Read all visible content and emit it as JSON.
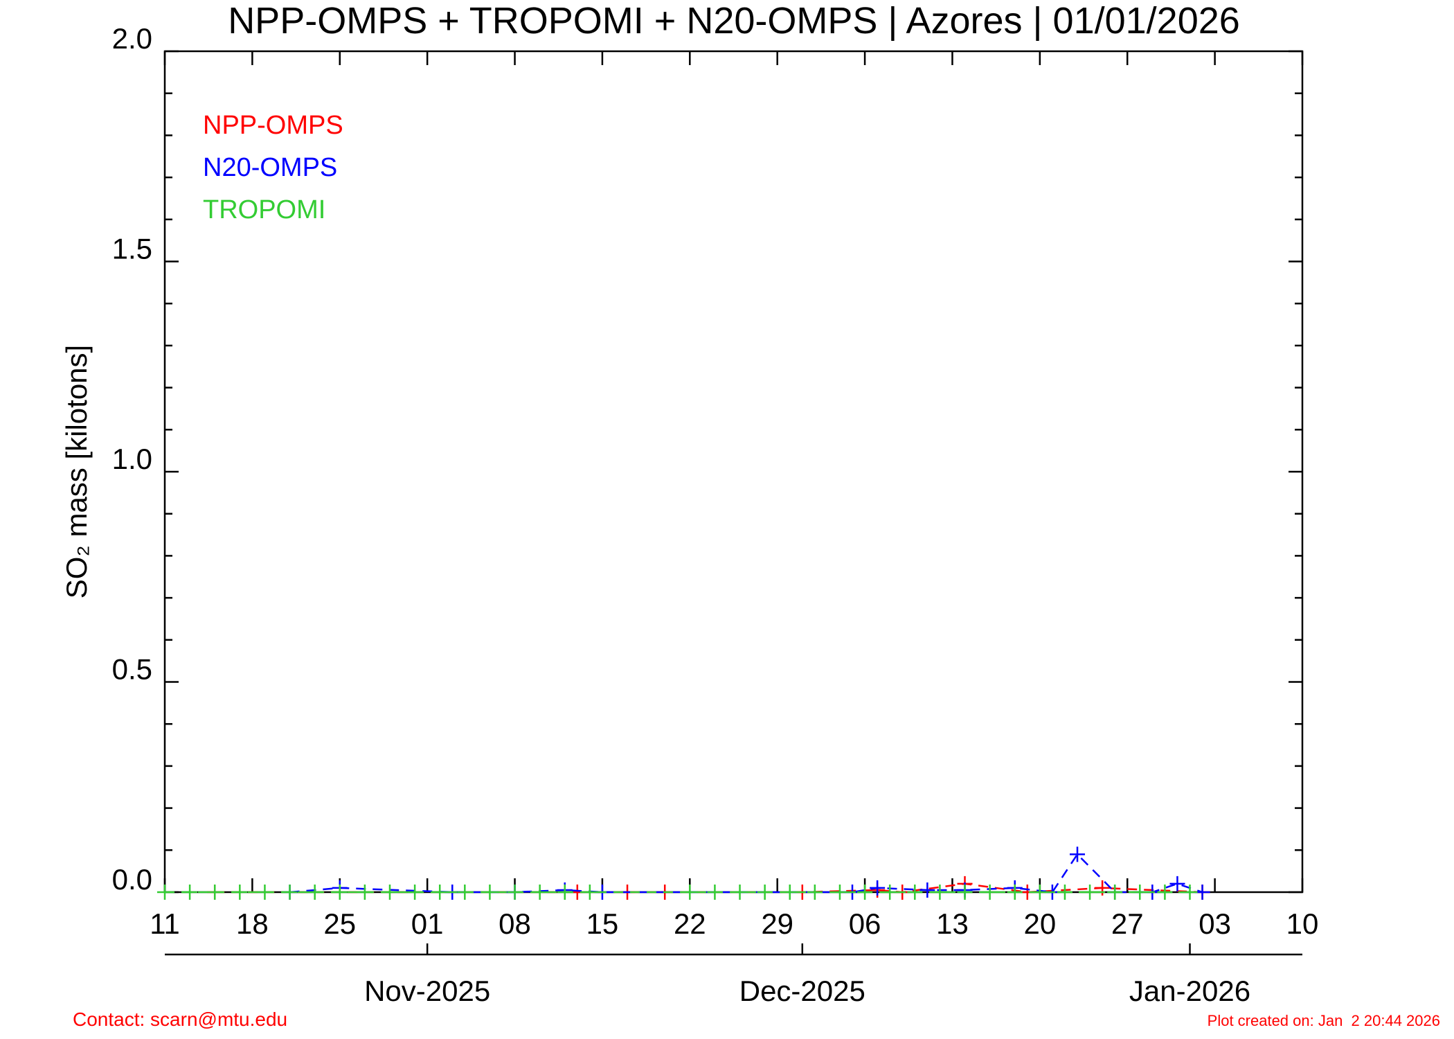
{
  "chart_data": {
    "type": "line",
    "title": "NPP-OMPS + TROPOMI + N20-OMPS | Azores | 01/01/2026",
    "y_label": "SO₂ mass [kilotons]",
    "xlim": [
      "2025-10-11",
      "2026-01-10"
    ],
    "xticks": [
      {
        "value": "2025-10-11",
        "label": "11"
      },
      {
        "value": "2025-10-18",
        "label": "18"
      },
      {
        "value": "2025-10-25",
        "label": "25"
      },
      {
        "value": "2025-11-01",
        "label": "01"
      },
      {
        "value": "2025-11-08",
        "label": "08"
      },
      {
        "value": "2025-11-15",
        "label": "15"
      },
      {
        "value": "2025-11-22",
        "label": "22"
      },
      {
        "value": "2025-11-29",
        "label": "29"
      },
      {
        "value": "2025-12-06",
        "label": "06"
      },
      {
        "value": "2025-12-13",
        "label": "13"
      },
      {
        "value": "2025-12-20",
        "label": "20"
      },
      {
        "value": "2025-12-27",
        "label": "27"
      },
      {
        "value": "2026-01-03",
        "label": "03"
      },
      {
        "value": "2026-01-10",
        "label": "10"
      }
    ],
    "month_ticks": [
      {
        "value": "2025-11-01",
        "label": "Nov-2025"
      },
      {
        "value": "2025-12-01",
        "label": "Dec-2025"
      },
      {
        "value": "2026-01-01",
        "label": "Jan-2026"
      }
    ],
    "ylim": [
      0,
      2.0
    ],
    "yticks": [
      {
        "value": 0,
        "label": "0.0"
      },
      0.5,
      {
        "value": 1,
        "label": "1.0"
      },
      1.5,
      {
        "value": 2,
        "label": "2.0"
      }
    ],
    "yminorticks": [
      0.1,
      0.2,
      0.3,
      0.4,
      0.6,
      0.7,
      0.8,
      0.9,
      1.1,
      1.2,
      1.3,
      1.4,
      1.6,
      1.7,
      1.8,
      1.9
    ],
    "series": [
      {
        "name": "NPP-OMPS",
        "color": "#ff0000",
        "x": [
          "2025-10-15",
          "2025-11-13",
          "2025-11-17",
          "2025-11-20",
          "2025-12-01",
          "2025-12-07",
          "2025-12-09",
          "2025-12-14",
          "2025-12-19",
          "2025-12-25",
          "2026-01-02"
        ],
        "values": [
          0,
          0,
          0,
          0,
          0,
          0.005,
          0,
          0.02,
          0,
          0.01,
          0
        ]
      },
      {
        "name": "N20-OMPS",
        "color": "#0000ff",
        "x": [
          "2025-10-21",
          "2025-10-25",
          "2025-11-03",
          "2025-11-08",
          "2025-11-12",
          "2025-11-15",
          "2025-12-05",
          "2025-12-07",
          "2025-12-11",
          "2025-12-14",
          "2025-12-18",
          "2025-12-21",
          "2025-12-23",
          "2025-12-26",
          "2025-12-29",
          "2025-12-31",
          "2026-01-02"
        ],
        "values": [
          0,
          0.01,
          0,
          0,
          0.005,
          0,
          0,
          0.01,
          0.005,
          0.005,
          0.01,
          0,
          0.09,
          0,
          0,
          0.02,
          0
        ]
      },
      {
        "name": "TROPOMI",
        "color": "#33cc33",
        "x": [
          "2025-10-11",
          "2025-10-13",
          "2025-10-15",
          "2025-10-17",
          "2025-10-19",
          "2025-10-21",
          "2025-10-23",
          "2025-10-25",
          "2025-10-27",
          "2025-10-29",
          "2025-10-31",
          "2025-11-02",
          "2025-11-04",
          "2025-11-06",
          "2025-11-08",
          "2025-11-10",
          "2025-11-12",
          "2025-11-14",
          "2025-11-22",
          "2025-11-24",
          "2025-11-26",
          "2025-11-28",
          "2025-11-30",
          "2025-12-02",
          "2025-12-04",
          "2025-12-06",
          "2025-12-08",
          "2025-12-10",
          "2025-12-12",
          "2025-12-14",
          "2025-12-16",
          "2025-12-18",
          "2025-12-20",
          "2025-12-22",
          "2025-12-24",
          "2025-12-26",
          "2025-12-28",
          "2025-12-30",
          "2026-01-01"
        ],
        "values": [
          0,
          0,
          0,
          0,
          0,
          0,
          0,
          0,
          0,
          0,
          0,
          0,
          0,
          0,
          0,
          0,
          0,
          0,
          0,
          0,
          0,
          0,
          0,
          0,
          0,
          0,
          0,
          0,
          0,
          0,
          0,
          0,
          0,
          0,
          0,
          0,
          0,
          0,
          0
        ]
      }
    ],
    "annotations": [
      "Contact: scarn@mtu.edu",
      "Plot created on: Jan  2 20:44 2026"
    ]
  }
}
